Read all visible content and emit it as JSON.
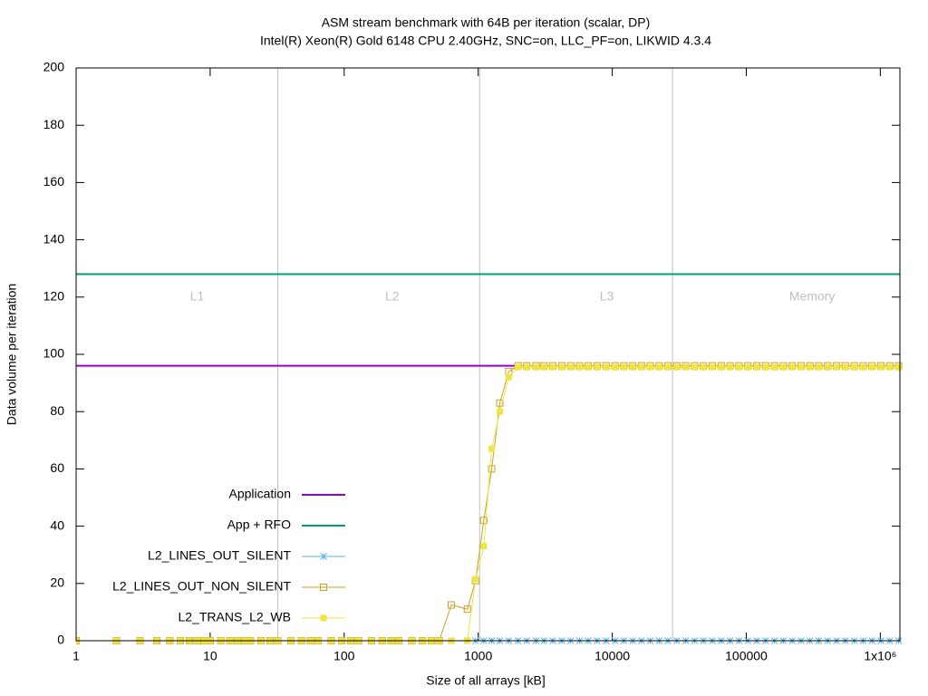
{
  "chart_data": {
    "type": "line",
    "title": "ASM stream benchmark with 64B per iteration (scalar, DP)",
    "subtitle": "Intel(R) Xeon(R) Gold 6148 CPU 2.40GHz, SNC=on, LLC_PF=on, LIKWID 4.3.4",
    "x_label": "Size of all arrays [kB]",
    "y_label": "Data volume per iteration",
    "x_scale": "log",
    "xlim": [
      1,
      1400000
    ],
    "xticks": [
      1,
      10,
      100,
      1000,
      10000,
      100000,
      {
        "value": 1000000,
        "label": "1x10⁶"
      }
    ],
    "ylim": [
      0,
      200
    ],
    "yticks": [
      0,
      20,
      40,
      60,
      80,
      100,
      120,
      140,
      160,
      180,
      200
    ],
    "vlines": [
      32,
      1024,
      28160
    ],
    "vline_color": "#c0c0c0",
    "annotations": [
      {
        "text": "L1",
        "x": 8,
        "y": 120
      },
      {
        "text": "L2",
        "x": 228,
        "y": 120
      },
      {
        "text": "L3",
        "x": 9100,
        "y": 120
      },
      {
        "text": "Memory",
        "x": 310000,
        "y": 120
      }
    ],
    "annotation_color": "#c0c0c0",
    "legend": "bottom-left",
    "series": [
      {
        "name": "Application",
        "color": "#9400d3",
        "marker": "none",
        "width": 2,
        "x": [
          1,
          1860
        ],
        "values": [
          96,
          96
        ]
      },
      {
        "name": "App + RFO",
        "color": "#009e73",
        "marker": "none",
        "width": 2,
        "x": [
          1,
          1400000
        ],
        "values": [
          128,
          128
        ]
      },
      {
        "name": "L2_LINES_OUT_SILENT",
        "color": "#56b4e9",
        "marker": "asterisk",
        "width": 1,
        "x": [
          1,
          2,
          3,
          4,
          5,
          6,
          7,
          8,
          9,
          10,
          12,
          14,
          16,
          18,
          20,
          24,
          28,
          32,
          40,
          48,
          56,
          64,
          80,
          96,
          112,
          128,
          160,
          192,
          224,
          256,
          320,
          384,
          448,
          512,
          630,
          830,
          955,
          1100,
          1260,
          1450,
          1690,
          1980,
          2300,
          2700,
          3100,
          3600,
          4200,
          4900,
          5700,
          6600,
          7700,
          9000,
          10500,
          12200,
          14200,
          16500,
          19200,
          22400,
          26000,
          30300,
          35300,
          41100,
          47900,
          55800,
          65000,
          75700,
          88200,
          102700,
          119600,
          139300,
          162200,
          188900,
          220000,
          256200,
          298400,
          347500,
          404700,
          471300,
          548900,
          639300,
          744500,
          867100,
          1009800,
          1176000,
          1369600
        ],
        "values": [
          0,
          0,
          0,
          0,
          0,
          0,
          0,
          0,
          0,
          0,
          0,
          0,
          0,
          0,
          0,
          0,
          0,
          0,
          0,
          0,
          0,
          0,
          0,
          0,
          0,
          0,
          0,
          0,
          0,
          0,
          0,
          0,
          0,
          0,
          0,
          0,
          0,
          0,
          0,
          0,
          0,
          0,
          0,
          0,
          0,
          0,
          0,
          0,
          0,
          0,
          0,
          0,
          0,
          0,
          0,
          0,
          0,
          0,
          0,
          0,
          0,
          0,
          0,
          0,
          0,
          0,
          0,
          0,
          0,
          0,
          0,
          0,
          0,
          0,
          0,
          0,
          0,
          0,
          0,
          0,
          0,
          0,
          0,
          0,
          0
        ]
      },
      {
        "name": "L2_LINES_OUT_NON_SILENT",
        "color": "#c9a227",
        "marker": "open-square",
        "width": 1,
        "x": [
          1,
          2,
          3,
          4,
          5,
          6,
          7,
          8,
          9,
          10,
          12,
          14,
          16,
          18,
          20,
          24,
          28,
          32,
          40,
          48,
          56,
          64,
          80,
          96,
          112,
          128,
          160,
          192,
          224,
          256,
          320,
          384,
          448,
          512,
          630,
          830,
          955,
          1100,
          1260,
          1450,
          1690,
          1980,
          2300,
          2700,
          3100,
          3600,
          4200,
          4900,
          5700,
          6600,
          7700,
          9000,
          10500,
          12200,
          14200,
          16500,
          19200,
          22400,
          26000,
          30300,
          35300,
          41100,
          47900,
          55800,
          65000,
          75700,
          88200,
          102700,
          119600,
          139300,
          162200,
          188900,
          220000,
          256200,
          298400,
          347500,
          404700,
          471300,
          548900,
          639300,
          744500,
          867100,
          1009800,
          1176000,
          1369600
        ],
        "values": [
          0,
          0,
          0,
          0,
          0,
          0,
          0,
          0,
          0,
          0,
          0,
          0,
          0,
          0,
          0,
          0,
          0,
          0,
          0,
          0,
          0,
          0,
          0,
          0,
          0,
          0,
          0,
          0,
          0,
          0,
          0,
          0,
          0,
          0,
          12.5,
          11,
          21,
          42,
          60,
          83,
          94,
          96,
          96,
          96,
          96,
          96,
          96,
          96,
          96,
          96,
          96,
          96,
          96,
          96,
          96,
          96,
          96,
          96,
          96,
          96,
          96,
          96,
          96,
          96,
          96,
          96,
          96,
          96,
          96,
          96,
          96,
          96,
          96,
          96,
          96,
          96,
          96,
          96,
          96,
          96,
          96,
          96,
          96,
          96,
          96
        ]
      },
      {
        "name": "L2_TRANS_L2_WB",
        "color": "#f0e442",
        "marker": "filled-square",
        "width": 1,
        "x": [
          1,
          2,
          3,
          4,
          5,
          6,
          7,
          8,
          9,
          10,
          12,
          14,
          16,
          18,
          20,
          24,
          28,
          32,
          40,
          48,
          56,
          64,
          80,
          96,
          112,
          128,
          160,
          192,
          224,
          256,
          320,
          384,
          448,
          512,
          630,
          830,
          955,
          1100,
          1260,
          1450,
          1690,
          1980,
          2300,
          2700,
          3100,
          3600,
          4200,
          4900,
          5700,
          6600,
          7700,
          9000,
          10500,
          12200,
          14200,
          16500,
          19200,
          22400,
          26000,
          30300,
          35300,
          41100,
          47900,
          55800,
          65000,
          75700,
          88200,
          102700,
          119600,
          139300,
          162200,
          188900,
          220000,
          256200,
          298400,
          347500,
          404700,
          471300,
          548900,
          639300,
          744500,
          867100,
          1009800,
          1176000,
          1369600
        ],
        "values": [
          0,
          0,
          0,
          0,
          0,
          0,
          0,
          0,
          0,
          0,
          0,
          0,
          0,
          0,
          0,
          0,
          0,
          0,
          0,
          0,
          0,
          0,
          0,
          0,
          0,
          0,
          0,
          0,
          0,
          0,
          0,
          0,
          0,
          0,
          0,
          0,
          21.5,
          33,
          67,
          80,
          92,
          95.5,
          95.5,
          95.5,
          95.5,
          95.5,
          95.5,
          95.5,
          95.5,
          95.5,
          95.5,
          95.5,
          95.5,
          95.5,
          95.5,
          95.5,
          95.5,
          95.5,
          95.5,
          95.5,
          95.5,
          95.5,
          95.5,
          95.5,
          95.5,
          95.5,
          95.5,
          95.5,
          95.5,
          95.5,
          95.5,
          95.5,
          95.5,
          95.5,
          95.5,
          95.5,
          95.5,
          95.5,
          95.5,
          95.5,
          95.5,
          95.5,
          95.5,
          95.5,
          95.5
        ]
      }
    ]
  }
}
